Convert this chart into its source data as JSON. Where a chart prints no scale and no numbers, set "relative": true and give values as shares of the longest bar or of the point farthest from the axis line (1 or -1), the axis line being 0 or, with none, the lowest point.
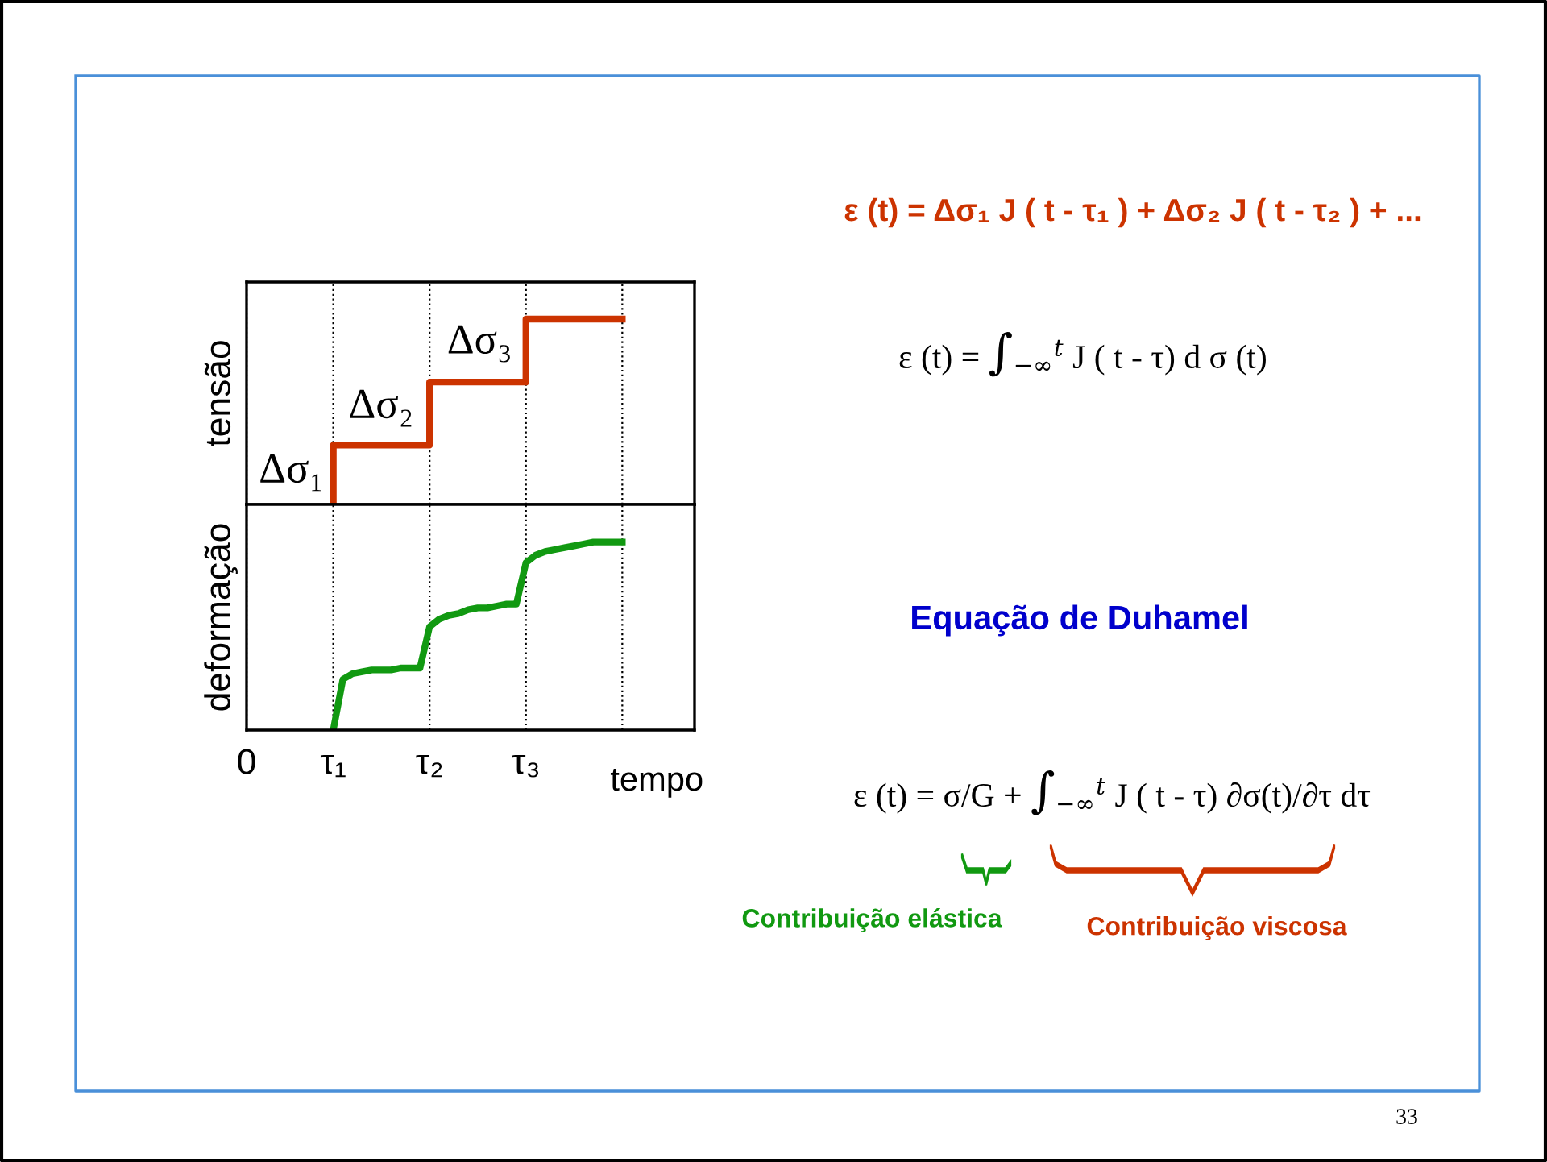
{
  "chart_data": [
    {
      "type": "step",
      "relative": true,
      "ylabel": "tensão",
      "categories": [
        null,
        null,
        null,
        null,
        null,
        null,
        null,
        null,
        null,
        null,
        null,
        null,
        null,
        null,
        null,
        null,
        null,
        null,
        null,
        null,
        null,
        null,
        null,
        null,
        null,
        null,
        null,
        null,
        null,
        null,
        null,
        null,
        null,
        null,
        null,
        null,
        null,
        null,
        null,
        null,
        null,
        null,
        null,
        null,
        null,
        null,
        null
      ],
      "tick_labels": false,
      "grid": "x",
      "series": [
        {
          "color": "#cc3300",
          "values": [
            null,
            null,
            null,
            null,
            null,
            null,
            null,
            null,
            null,
            0,
            0.32,
            0.32,
            0.32,
            0.32,
            0.32,
            0.32,
            0.32,
            0.32,
            0.32,
            0.32,
            0.66,
            0.66,
            0.66,
            0.66,
            0.66,
            0.66,
            0.66,
            0.66,
            0.66,
            0.66,
            1,
            1,
            1,
            1,
            1,
            1,
            1,
            1,
            1,
            1,
            null,
            null,
            null,
            null,
            null,
            null,
            null
          ]
        }
      ],
      "annotations": [
        "Δσ₁",
        "Δσ₂",
        "Δσ₃"
      ]
    },
    {
      "type": "line",
      "relative": true,
      "ylabel": "deformação",
      "xlabel": "tempo",
      "categories": [
        "0",
        null,
        null,
        null,
        null,
        null,
        null,
        null,
        null,
        "τ₁",
        null,
        null,
        null,
        null,
        null,
        null,
        null,
        null,
        null,
        "τ₂",
        null,
        null,
        null,
        null,
        null,
        null,
        null,
        null,
        null,
        "τ₃",
        null,
        null,
        null,
        null,
        null,
        null,
        null,
        null,
        null,
        null,
        null,
        null,
        null,
        null,
        null,
        null,
        null
      ],
      "tick_labels": "x",
      "grid": "x",
      "series": [
        {
          "color": "#119911",
          "values": [
            null,
            null,
            null,
            null,
            null,
            null,
            null,
            null,
            null,
            0,
            0.27,
            0.3,
            0.31,
            0.32,
            0.32,
            0.32,
            0.33,
            0.33,
            0.33,
            0.55,
            0.59,
            0.61,
            0.62,
            0.64,
            0.65,
            0.65,
            0.66,
            0.67,
            0.67,
            0.89,
            0.93,
            0.95,
            0.96,
            0.97,
            0.98,
            0.99,
            1,
            1,
            1,
            1,
            null,
            null,
            null,
            null,
            null,
            null,
            null
          ]
        }
      ]
    },
    {
      "type": "other",
      "annotations": [
        "ε (t) = Δσ₁ J ( t - τ₁ ) + Δσ₂ J ( t - τ₂ ) + ...",
        "ε (t) = ∫$_{−∞}$$^{t}$ J ( t - τ) d σ (t)",
        "Equação de Duhamel",
        "ε (t) = σ/G + ∫$_{−∞}$$^{t}$ J ( t - τ) ∂σ(t)/∂τ dτ",
        "Contribuição elástica",
        "Contribuição viscosa",
        "33"
      ]
    }
  ]
}
